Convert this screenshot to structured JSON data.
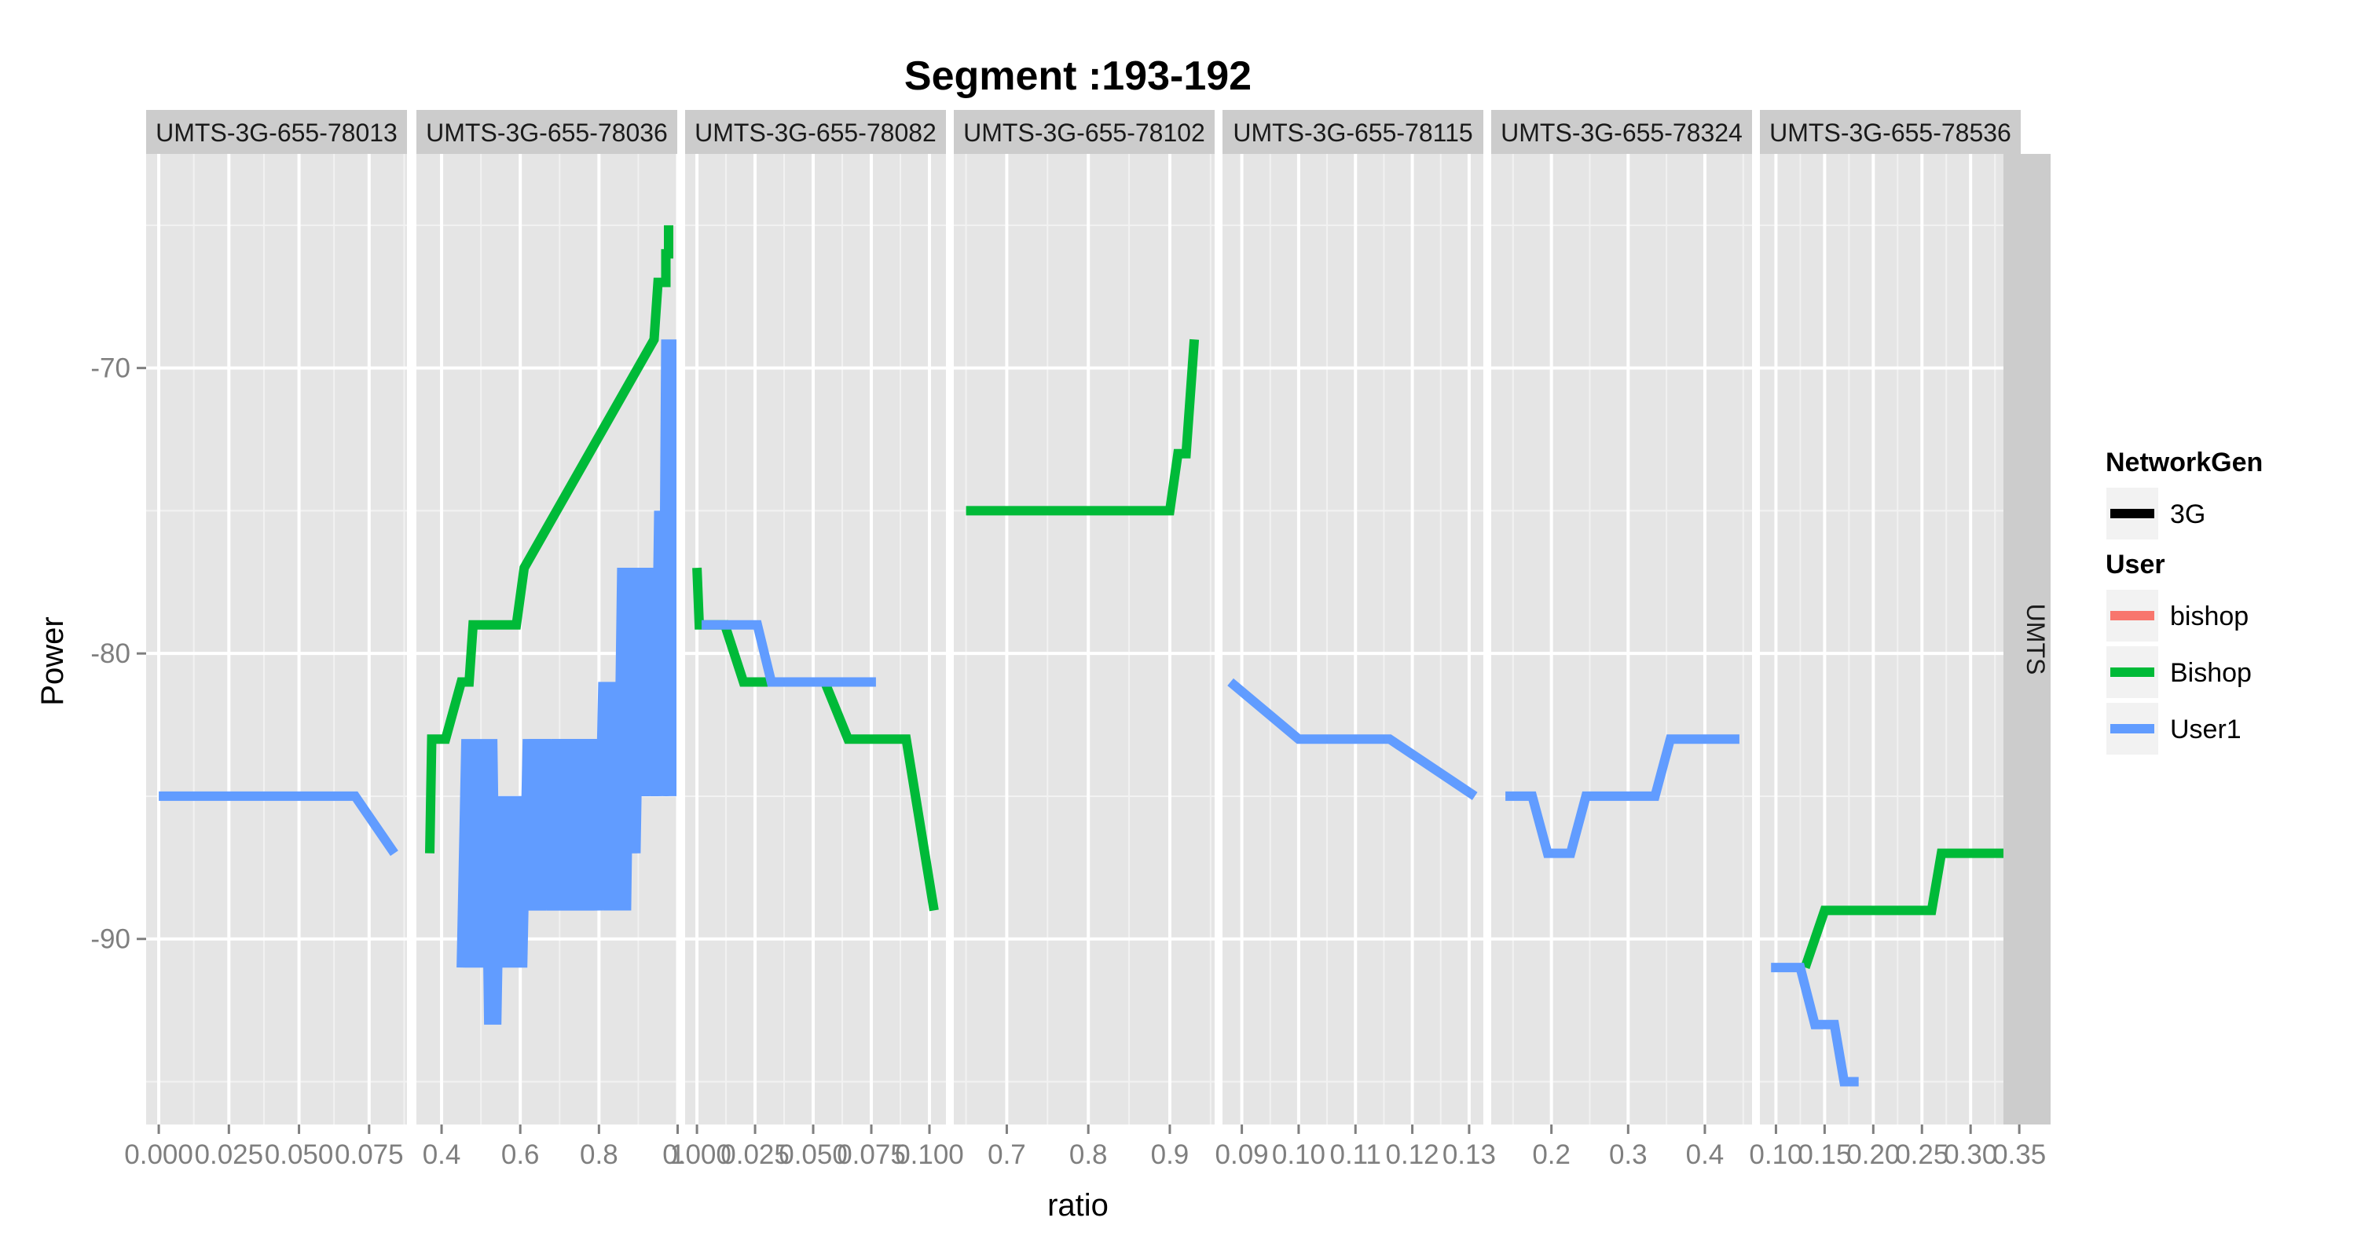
{
  "chart_data": {
    "type": "line",
    "title": "Segment :193-192",
    "xlabel": "ratio",
    "ylabel": "Power",
    "ylim": [
      -96.5,
      -62.5
    ],
    "y_ticks": [
      -70,
      -80,
      -90
    ],
    "y_tick_labels": [
      "-70",
      "-80",
      "-90"
    ],
    "row_strip": "UMTS",
    "grid": true,
    "colors": {
      "bishop": "#F8766D",
      "Bishop": "#00BA38",
      "User1": "#619CFF",
      "panel_bg": "#E5E5E5",
      "strip_bg": "#CCCCCC"
    },
    "legend": {
      "position": "right",
      "groups": [
        {
          "title": "NetworkGen",
          "entries": [
            {
              "label": "3G",
              "color": "#000000"
            }
          ]
        },
        {
          "title": "User",
          "entries": [
            {
              "label": "bishop",
              "color": "#F8766D"
            },
            {
              "label": "Bishop",
              "color": "#00BA38"
            },
            {
              "label": "User1",
              "color": "#619CFF"
            }
          ]
        }
      ]
    },
    "panels": [
      {
        "strip": "UMTS-3G-655-78013",
        "xlim": [
          -0.0045,
          0.0885
        ],
        "x_ticks": [
          0.0,
          0.025,
          0.05,
          0.075
        ],
        "x_tick_labels": [
          "0.000",
          "0.025",
          "0.050",
          "0.075"
        ],
        "series": [
          {
            "user": "User1",
            "points": [
              [
                0.0,
                -85
              ],
              [
                0.07,
                -85
              ],
              [
                0.084,
                -87
              ]
            ]
          }
        ]
      },
      {
        "strip": "UMTS-3G-655-78036",
        "xlim": [
          0.336,
          0.999
        ],
        "x_ticks": [
          0.4,
          0.6,
          0.8,
          1.0
        ],
        "x_tick_labels": [
          "0.4",
          "0.6",
          "0.8",
          "1"
        ],
        "series": [
          {
            "user": "Bishop",
            "points": [
              [
                0.37,
                -87
              ],
              [
                0.375,
                -83
              ],
              [
                0.41,
                -83
              ],
              [
                0.45,
                -81
              ],
              [
                0.47,
                -81
              ],
              [
                0.48,
                -79
              ],
              [
                0.59,
                -79
              ],
              [
                0.61,
                -77
              ],
              [
                0.94,
                -69
              ],
              [
                0.95,
                -67
              ],
              [
                0.97,
                -67
              ],
              [
                0.97,
                -66
              ],
              [
                0.977,
                -66
              ],
              [
                0.977,
                -65
              ]
            ]
          },
          {
            "user": "User1",
            "points": [
              [
                0.45,
                -91
              ],
              [
                0.462,
                -83
              ],
              [
                0.474,
                -91
              ],
              [
                0.486,
                -83
              ],
              [
                0.498,
                -91
              ],
              [
                0.51,
                -83
              ],
              [
                0.52,
                -93
              ],
              [
                0.53,
                -83
              ],
              [
                0.54,
                -93
              ],
              [
                0.55,
                -85
              ],
              [
                0.56,
                -91
              ],
              [
                0.57,
                -85
              ],
              [
                0.582,
                -91
              ],
              [
                0.594,
                -85
              ],
              [
                0.606,
                -91
              ],
              [
                0.618,
                -83
              ],
              [
                0.63,
                -89
              ],
              [
                0.642,
                -83
              ],
              [
                0.654,
                -89
              ],
              [
                0.666,
                -83
              ],
              [
                0.678,
                -89
              ],
              [
                0.69,
                -83
              ],
              [
                0.702,
                -89
              ],
              [
                0.714,
                -83
              ],
              [
                0.726,
                -89
              ],
              [
                0.738,
                -83
              ],
              [
                0.75,
                -89
              ],
              [
                0.762,
                -83
              ],
              [
                0.774,
                -89
              ],
              [
                0.786,
                -83
              ],
              [
                0.798,
                -89
              ],
              [
                0.81,
                -81
              ],
              [
                0.822,
                -89
              ],
              [
                0.834,
                -81
              ],
              [
                0.846,
                -89
              ],
              [
                0.858,
                -77
              ],
              [
                0.87,
                -89
              ],
              [
                0.882,
                -77
              ],
              [
                0.894,
                -87
              ],
              [
                0.906,
                -77
              ],
              [
                0.918,
                -85
              ],
              [
                0.93,
                -77
              ],
              [
                0.942,
                -85
              ],
              [
                0.952,
                -75
              ],
              [
                0.962,
                -85
              ],
              [
                0.97,
                -69
              ],
              [
                0.98,
                -85
              ],
              [
                0.985,
                -69
              ],
              [
                0.985,
                -85
              ]
            ]
          }
        ]
      },
      {
        "strip": "UMTS-3G-655-78082",
        "xlim": [
          -0.0051,
          0.1071
        ],
        "x_ticks": [
          0.0,
          0.025,
          0.05,
          0.075,
          0.1
        ],
        "x_tick_labels": [
          "0.000",
          "0.025",
          "0.050",
          "0.075",
          "0.100"
        ],
        "series": [
          {
            "user": "Bishop",
            "points": [
              [
                0.0,
                -77
              ],
              [
                0.001,
                -79
              ],
              [
                0.012,
                -79
              ],
              [
                0.02,
                -81
              ],
              [
                0.055,
                -81
              ],
              [
                0.065,
                -83
              ],
              [
                0.09,
                -83
              ],
              [
                0.102,
                -89
              ]
            ]
          },
          {
            "user": "User1",
            "points": [
              [
                0.002,
                -79
              ],
              [
                0.026,
                -79
              ],
              [
                0.032,
                -81
              ],
              [
                0.077,
                -81
              ]
            ]
          }
        ]
      },
      {
        "strip": "UMTS-3G-655-78102",
        "xlim": [
          0.635,
          0.955
        ],
        "x_ticks": [
          0.7,
          0.8,
          0.9
        ],
        "x_tick_labels": [
          "0.7",
          "0.8",
          "0.9"
        ],
        "series": [
          {
            "user": "Bishop",
            "points": [
              [
                0.65,
                -75
              ],
              [
                0.9,
                -75
              ],
              [
                0.91,
                -73
              ],
              [
                0.92,
                -73
              ],
              [
                0.93,
                -69
              ]
            ]
          }
        ]
      },
      {
        "strip": "UMTS-3G-655-78115",
        "xlim": [
          0.0866,
          0.1325
        ],
        "x_ticks": [
          0.09,
          0.1,
          0.11,
          0.12,
          0.13
        ],
        "x_tick_labels": [
          "0.09",
          "0.10",
          "0.11",
          "0.12",
          "0.13"
        ],
        "series": [
          {
            "user": "User1",
            "points": [
              [
                0.088,
                -81
              ],
              [
                0.1,
                -83
              ],
              [
                0.116,
                -83
              ],
              [
                0.131,
                -85
              ]
            ]
          }
        ]
      },
      {
        "strip": "UMTS-3G-655-78324",
        "xlim": [
          0.1215,
          0.4615
        ],
        "x_ticks": [
          0.2,
          0.3,
          0.4
        ],
        "x_tick_labels": [
          "0.2",
          "0.3",
          "0.4"
        ],
        "series": [
          {
            "user": "User1",
            "points": [
              [
                0.14,
                -85
              ],
              [
                0.175,
                -85
              ],
              [
                0.195,
                -87
              ],
              [
                0.225,
                -87
              ],
              [
                0.245,
                -85
              ],
              [
                0.335,
                -85
              ],
              [
                0.355,
                -83
              ],
              [
                0.445,
                -83
              ]
            ]
          }
        ]
      },
      {
        "strip": "UMTS-3G-655-78536",
        "xlim": [
          0.0835,
          0.3515
        ],
        "x_ticks": [
          0.1,
          0.15,
          0.2,
          0.25,
          0.3,
          0.35
        ],
        "x_tick_labels": [
          "0.10",
          "0.15",
          "0.20",
          "0.25",
          "0.30",
          "0.35"
        ],
        "series": [
          {
            "user": "Bishop",
            "points": [
              [
                0.13,
                -91
              ],
              [
                0.15,
                -89
              ],
              [
                0.26,
                -89
              ],
              [
                0.27,
                -87
              ],
              [
                0.34,
                -87
              ]
            ]
          },
          {
            "user": "User1",
            "points": [
              [
                0.095,
                -91
              ],
              [
                0.125,
                -91
              ],
              [
                0.14,
                -93
              ],
              [
                0.16,
                -93
              ],
              [
                0.17,
                -95
              ],
              [
                0.185,
                -95
              ]
            ]
          }
        ]
      }
    ]
  }
}
